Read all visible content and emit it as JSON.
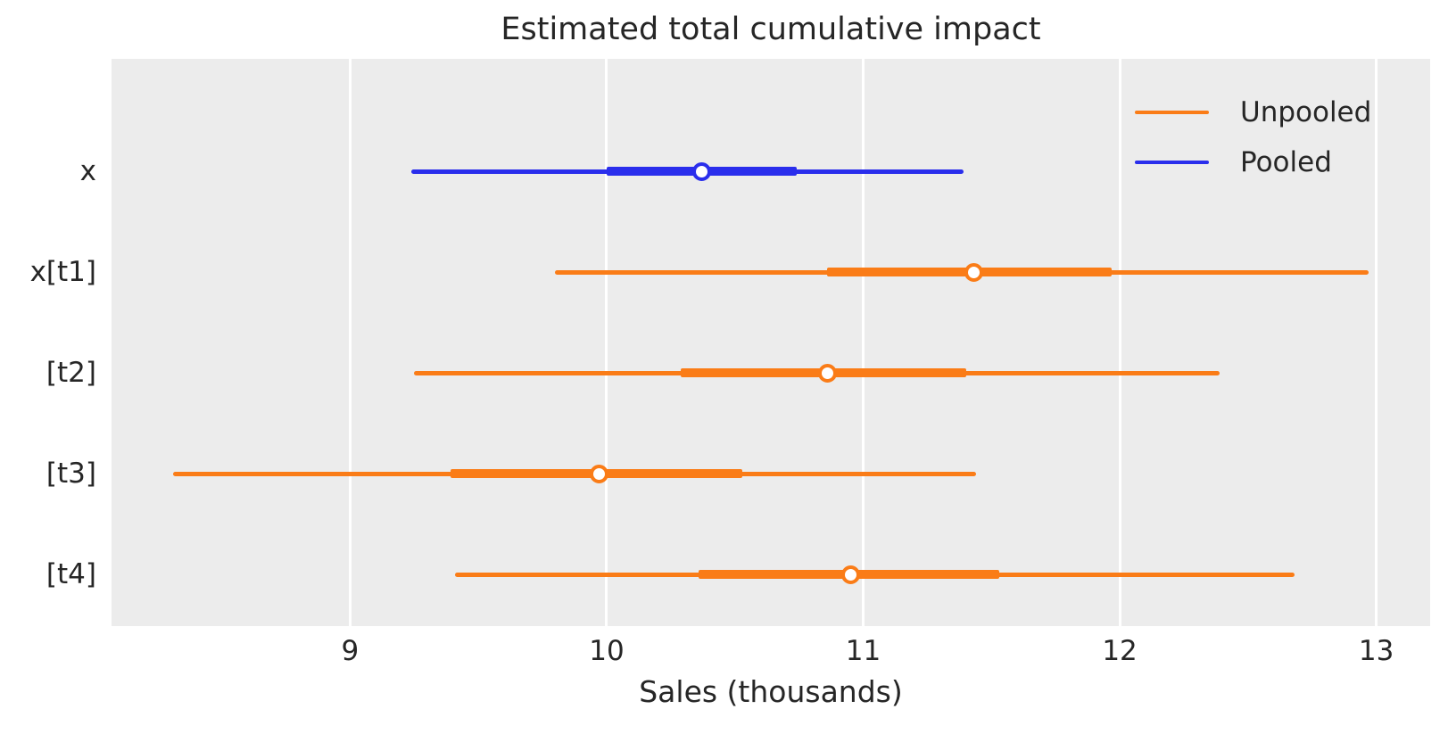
{
  "title": "Estimated total cumulative impact",
  "xlabel": "Sales (thousands)",
  "colors": {
    "unpooled": "#fa7c17",
    "pooled": "#2a2eec",
    "plot_background": "#ececec",
    "figure_background": "#ffffff",
    "gridline": "#ffffff",
    "text": "#262626"
  },
  "legend": {
    "position": "upper right",
    "items": [
      {
        "label": "Unpooled",
        "color": "#fa7c17"
      },
      {
        "label": "Pooled",
        "color": "#2a2eec"
      }
    ]
  },
  "chart_data": {
    "type": "forest",
    "title": "Estimated total cumulative impact",
    "xlabel": "Sales (thousands)",
    "ylabel": "",
    "xlim": [
      8.07,
      13.21
    ],
    "xticks": [
      9,
      10,
      11,
      12,
      13
    ],
    "grid": "vertical-white-on-gray",
    "legend_entries": [
      "Unpooled",
      "Pooled"
    ],
    "legend_position": "upper right",
    "rows": [
      {
        "label": "x",
        "series": "Pooled",
        "color": "#2a2eec",
        "interval_outer": [
          9.24,
          11.39
        ],
        "interval_inner": [
          10.0,
          10.74
        ],
        "point": 10.37
      },
      {
        "label": "x[t1]",
        "series": "Unpooled",
        "color": "#fa7c17",
        "interval_outer": [
          9.8,
          12.97
        ],
        "interval_inner": [
          10.86,
          11.97
        ],
        "point": 11.43
      },
      {
        "label": "[t2]",
        "series": "Unpooled",
        "color": "#fa7c17",
        "interval_outer": [
          9.25,
          12.39
        ],
        "interval_inner": [
          10.29,
          11.4
        ],
        "point": 10.86
      },
      {
        "label": "[t3]",
        "series": "Unpooled",
        "color": "#fa7c17",
        "interval_outer": [
          8.31,
          11.44
        ],
        "interval_inner": [
          9.39,
          10.53
        ],
        "point": 9.97
      },
      {
        "label": "[t4]",
        "series": "Unpooled",
        "color": "#fa7c17",
        "interval_outer": [
          9.41,
          12.68
        ],
        "interval_inner": [
          10.36,
          11.53
        ],
        "point": 10.95
      }
    ]
  }
}
